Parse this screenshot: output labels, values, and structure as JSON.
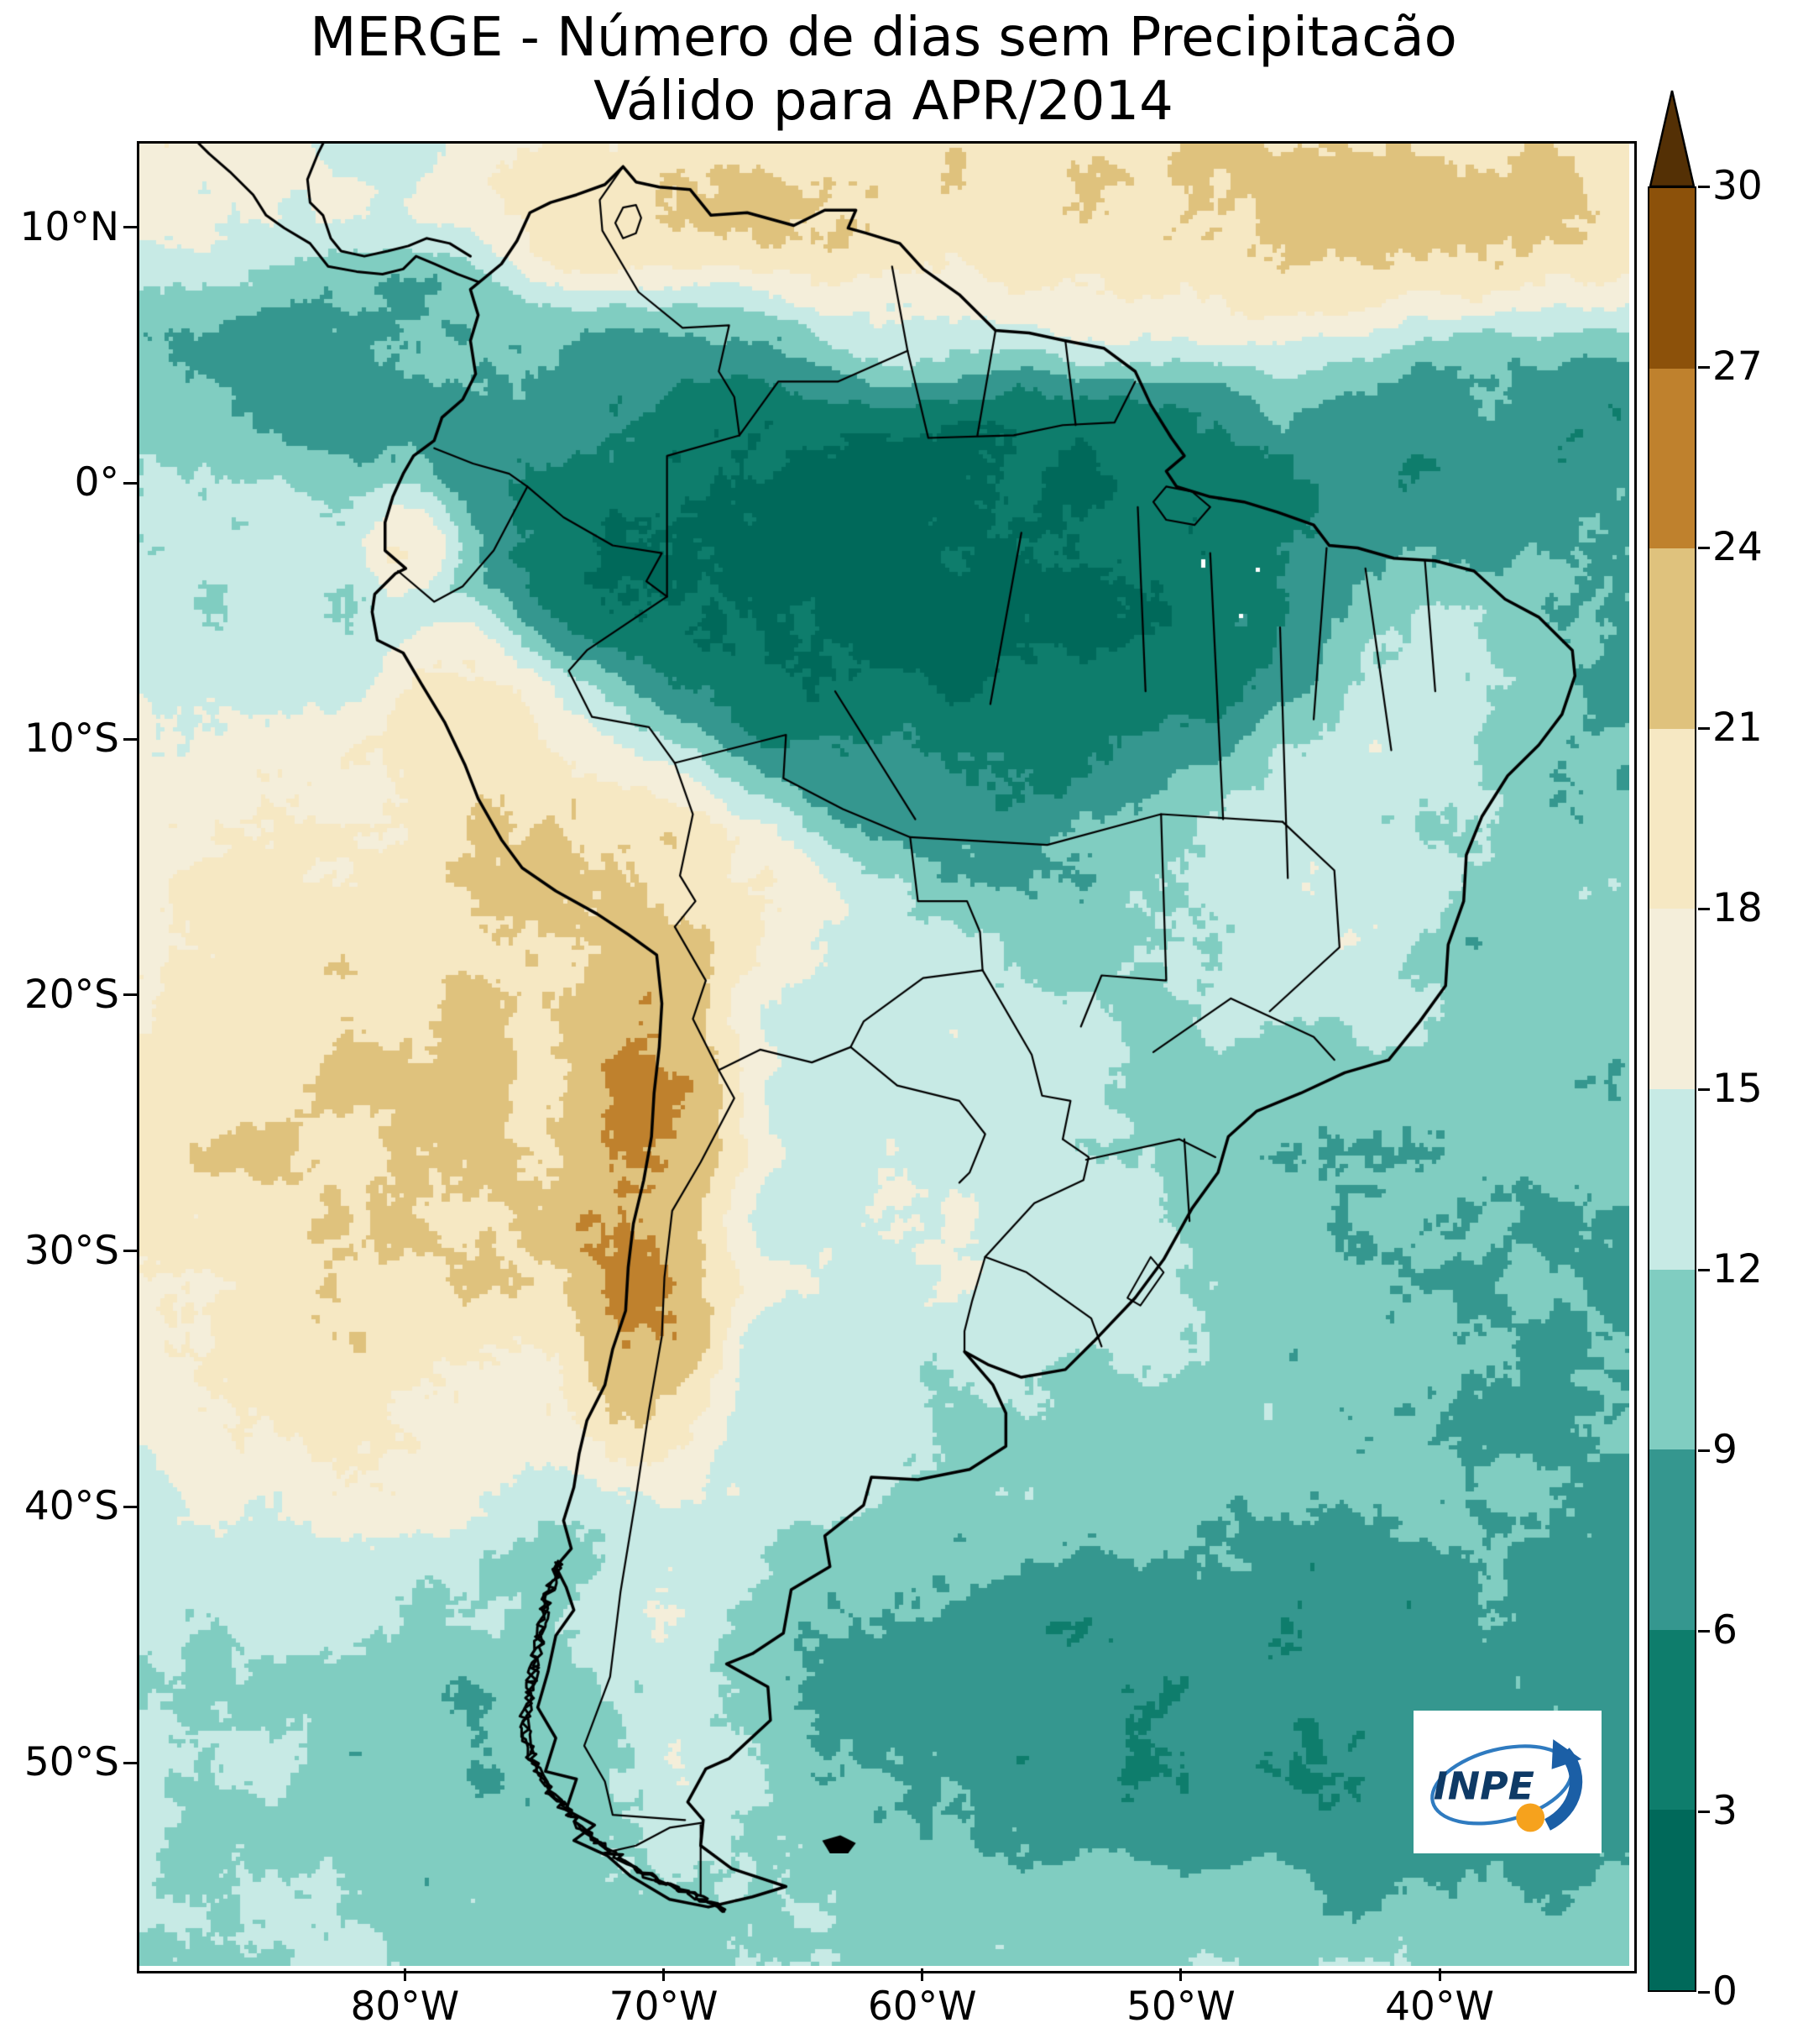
{
  "figure": {
    "title_line1": "MERGE - Número de dias sem Precipitacão",
    "title_line2": "Válido para APR/2014"
  },
  "axes": {
    "y_tick_labels": [
      "10°N",
      "0°",
      "10°S",
      "20°S",
      "30°S",
      "40°S",
      "50°S"
    ],
    "x_tick_labels": [
      "80°W",
      "70°W",
      "60°W",
      "50°W",
      "40°W"
    ]
  },
  "colorbar": {
    "tick_labels_top_to_bottom": [
      "30",
      "27",
      "24",
      "21",
      "18",
      "15",
      "12",
      "9",
      "6",
      "3",
      "0"
    ],
    "segment_colors_bottom_to_top": [
      "#00695a",
      "#0e7d6c",
      "#35978f",
      "#80cdc1",
      "#c7eae5",
      "#f4eeda",
      "#f6e8c3",
      "#dfc27d",
      "#bf812d",
      "#8c510a"
    ],
    "over_color": "#543005"
  },
  "logo": {
    "text": "INPE"
  },
  "chart_data": {
    "type": "heatmap",
    "title": "MERGE - Número de dias sem Precipitacão",
    "subtitle": "Válido para APR/2014",
    "variable": "Número de dias sem Precipitacão",
    "valid_for": "APR/2014",
    "units": "dias",
    "x_axis": {
      "tick_labels": [
        "80°W",
        "70°W",
        "60°W",
        "50°W",
        "40°W"
      ],
      "tick_values_deg_lon": [
        -80,
        -70,
        -60,
        -50,
        -40
      ]
    },
    "y_axis": {
      "tick_labels": [
        "10°N",
        "0°",
        "10°S",
        "20°S",
        "30°S",
        "40°S",
        "50°S"
      ],
      "tick_values_deg_lat": [
        10,
        0,
        -10,
        -20,
        -30,
        -40,
        -50
      ]
    },
    "colorbar": {
      "min": 0,
      "max": 30,
      "ticks": [
        0,
        3,
        6,
        9,
        12,
        15,
        18,
        21,
        24,
        27,
        30
      ],
      "extend": "max",
      "colors_low_to_high": [
        "#00695a",
        "#0e7d6c",
        "#35978f",
        "#80cdc1",
        "#c7eae5",
        "#f4eeda",
        "#f6e8c3",
        "#dfc27d",
        "#bf812d",
        "#8c510a"
      ],
      "over_color": "#543005"
    },
    "legend_position": "right"
  }
}
